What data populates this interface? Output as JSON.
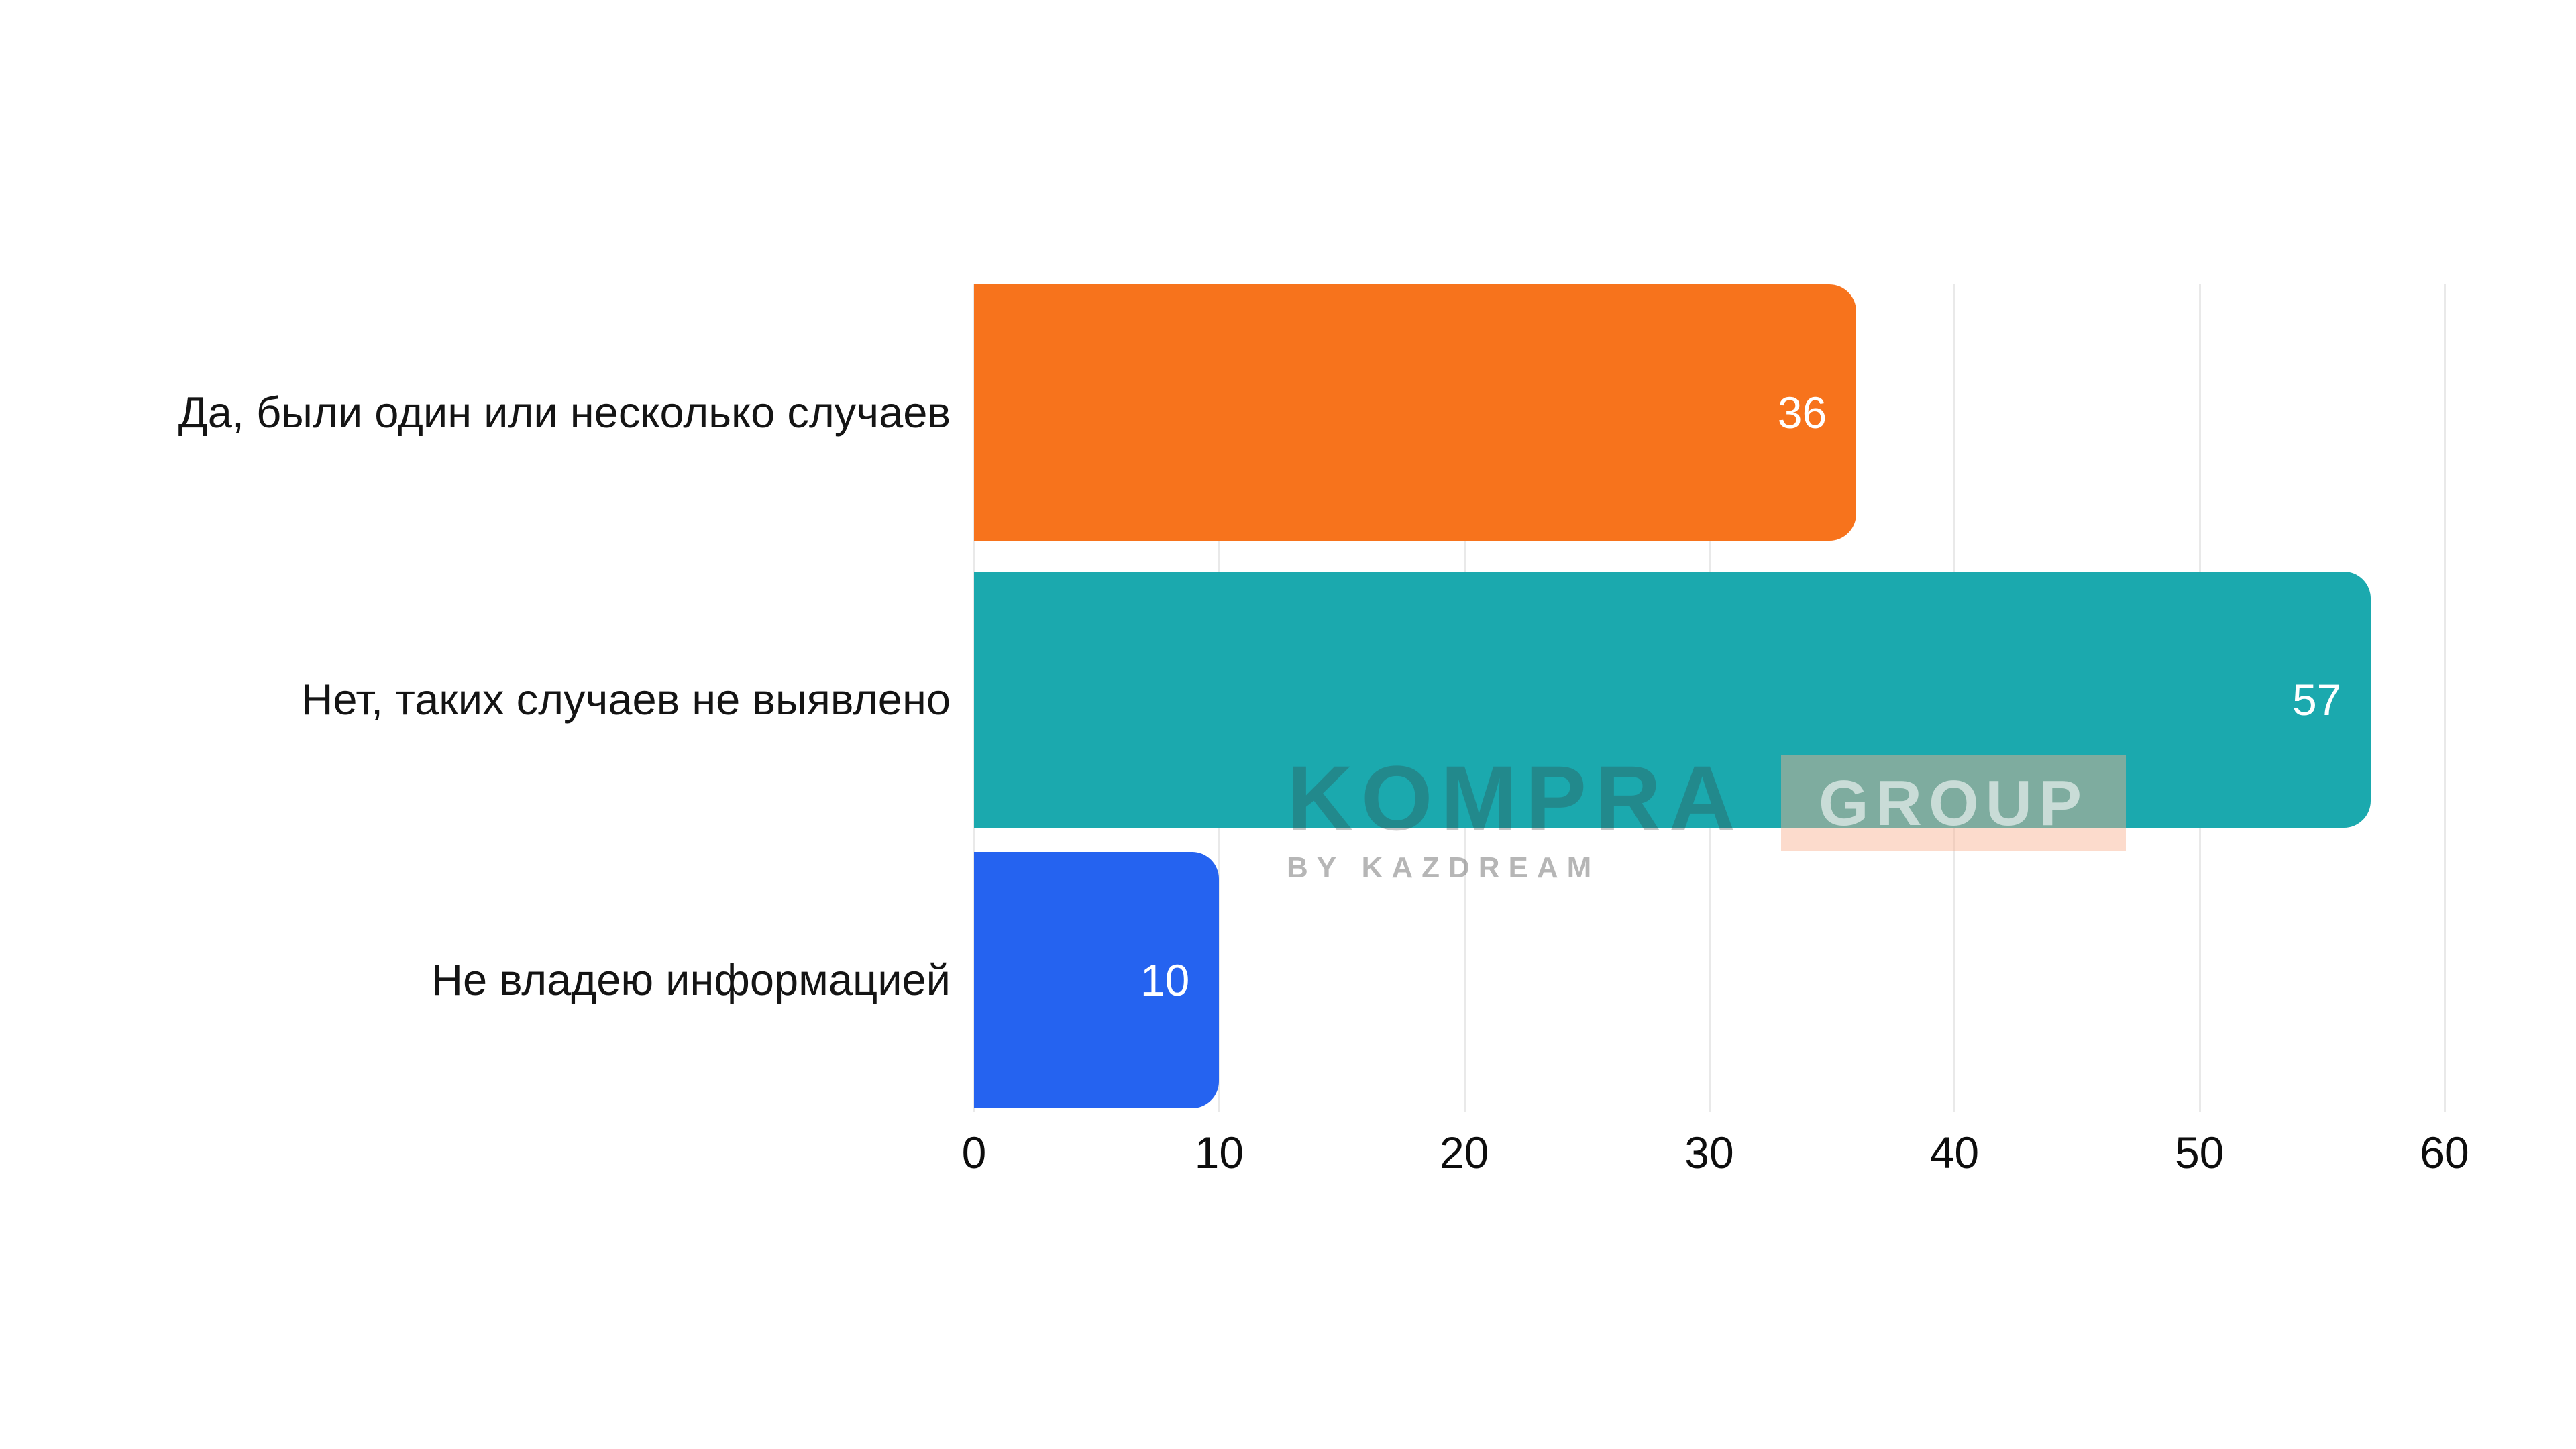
{
  "chart_data": {
    "type": "bar",
    "orientation": "horizontal",
    "title": "",
    "xlabel": "",
    "ylabel": "",
    "categories": [
      "Да, были один или несколько случаев",
      "Нет, таких случаев не выявлено",
      "Не владею информацией"
    ],
    "values": [
      36,
      57,
      10
    ],
    "bar_colors": [
      "#f7731c",
      "#1ba9ae",
      "#2563f0"
    ],
    "value_label_color": "#ffffff",
    "xticks": [
      "0",
      "10",
      "20",
      "30",
      "40",
      "50",
      "60"
    ],
    "xlim": [
      0,
      60
    ],
    "grid": true,
    "gridline_color": "#e9e9e9",
    "legend": "none"
  },
  "watermark": {
    "brand": "KOMPRA",
    "badge": "GROUP",
    "tagline": "BY KAZDREAM",
    "badge_background": "#f9af8f",
    "brand_color": "#9a9a9a"
  }
}
